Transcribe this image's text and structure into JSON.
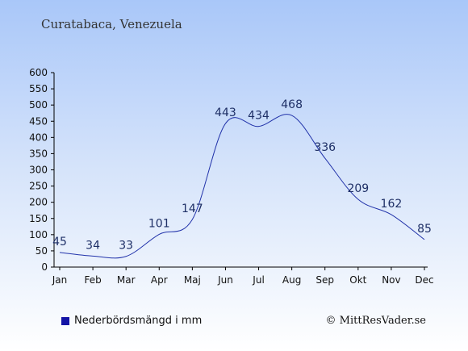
{
  "title": "Curatabaca, Venezuela",
  "legend": {
    "label": "Nederbördsmängd i mm",
    "color": "#1414a6"
  },
  "copyright": "© MittResVader.se",
  "chart_data": {
    "type": "line",
    "categories": [
      "Jan",
      "Feb",
      "Mar",
      "Apr",
      "Maj",
      "Jun",
      "Jul",
      "Aug",
      "Sep",
      "Okt",
      "Nov",
      "Dec"
    ],
    "series": [
      {
        "name": "Nederbördsmängd i mm",
        "values": [
          45,
          34,
          33,
          101,
          147,
          443,
          434,
          468,
          336,
          209,
          162,
          85
        ]
      }
    ],
    "data_labels": [
      "45",
      "34",
      "33",
      "101",
      "147",
      "443",
      "434",
      "468",
      "336",
      "209",
      "162",
      "85"
    ],
    "yticks": [
      0,
      50,
      100,
      150,
      200,
      250,
      300,
      350,
      400,
      450,
      500,
      550,
      600
    ],
    "ylim": [
      0,
      600
    ],
    "line_color": "#2233aa",
    "grid": false,
    "legend_position": "bottom-left"
  }
}
